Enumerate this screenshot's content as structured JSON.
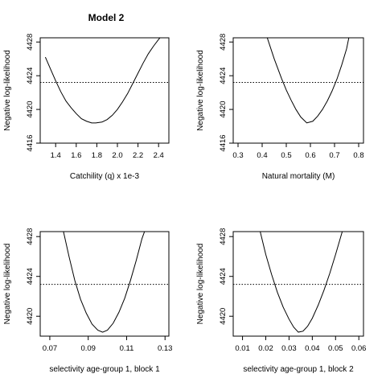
{
  "title": "Model 2",
  "chart_data": [
    {
      "type": "line",
      "xlabel": "Catchility (q) x 1e-3",
      "ylabel": "Negative log-likelihood",
      "xlim": [
        1.25,
        2.5
      ],
      "ylim": [
        4416,
        4428.5
      ],
      "xticks": [
        1.4,
        1.6,
        1.8,
        2.0,
        2.2,
        2.4
      ],
      "xtick_labels": [
        "1.4",
        "1.6",
        "1.8",
        "2.0",
        "2.2",
        "2.4"
      ],
      "yticks": [
        4416,
        4420,
        4424,
        4428
      ],
      "ytick_labels": [
        "4416",
        "4420",
        "4424",
        "4428"
      ],
      "minimum": {
        "x": 1.79,
        "y": 4418.4
      },
      "curve_x_start": 1.3,
      "reference_line": 4423.2,
      "series": [
        {
          "x": [
            1.3,
            1.35,
            1.4,
            1.45,
            1.5,
            1.55,
            1.6,
            1.65,
            1.7,
            1.75,
            1.79,
            1.85,
            1.9,
            1.95,
            2.0,
            2.05,
            2.1,
            2.15,
            2.2,
            2.25,
            2.3,
            2.35,
            2.4,
            2.42
          ],
          "y": [
            4426.2,
            4424.8,
            4423.4,
            4422.1,
            4421.0,
            4420.2,
            4419.5,
            4418.9,
            4418.6,
            4418.4,
            4418.4,
            4418.5,
            4418.8,
            4419.3,
            4420.0,
            4420.9,
            4421.9,
            4423.1,
            4424.3,
            4425.5,
            4426.6,
            4427.5,
            4428.3,
            4428.6
          ]
        }
      ]
    },
    {
      "type": "line",
      "xlabel": "Natural mortality (M)",
      "ylabel": "Negative log-likelihood",
      "xlim": [
        0.28,
        0.82
      ],
      "ylim": [
        4416,
        4428.5
      ],
      "xticks": [
        0.3,
        0.4,
        0.5,
        0.6,
        0.7,
        0.8
      ],
      "xtick_labels": [
        "0.3",
        "0.4",
        "0.5",
        "0.6",
        "0.7",
        "0.8"
      ],
      "yticks": [
        4416,
        4420,
        4424,
        4428
      ],
      "ytick_labels": [
        "4416",
        "4420",
        "4424",
        "4428"
      ],
      "minimum": {
        "x": 0.585,
        "y": 4418.4
      },
      "reference_line": 4423.2,
      "series": [
        {
          "x": [
            0.42,
            0.45,
            0.48,
            0.5,
            0.52,
            0.54,
            0.56,
            0.585,
            0.61,
            0.63,
            0.65,
            0.67,
            0.69,
            0.71,
            0.73,
            0.75,
            0.76
          ],
          "y": [
            4428.6,
            4426.0,
            4423.7,
            4422.3,
            4421.1,
            4420.0,
            4419.1,
            4418.4,
            4418.6,
            4419.2,
            4420.0,
            4421.0,
            4422.2,
            4423.6,
            4425.3,
            4427.2,
            4428.6
          ]
        }
      ]
    },
    {
      "type": "line",
      "xlabel": "selectivity age-group 1, block 1",
      "ylabel": "Negative log-likelihood",
      "xlim": [
        0.065,
        0.132
      ],
      "ylim": [
        4418.0,
        4428.5
      ],
      "xticks": [
        0.07,
        0.09,
        0.11,
        0.13
      ],
      "xtick_labels": [
        "0.07",
        "0.09",
        "0.11",
        "0.13"
      ],
      "yticks": [
        4420,
        4424,
        4428
      ],
      "ytick_labels": [
        "4420",
        "4424",
        "4428"
      ],
      "minimum": {
        "x": 0.0975,
        "y": 4418.4
      },
      "reference_line": 4423.2,
      "series": [
        {
          "x": [
            0.077,
            0.08,
            0.083,
            0.086,
            0.089,
            0.092,
            0.095,
            0.0975,
            0.1,
            0.103,
            0.106,
            0.109,
            0.112,
            0.115,
            0.118,
            0.1195
          ],
          "y": [
            4428.6,
            4426.0,
            4423.6,
            4421.7,
            4420.3,
            4419.2,
            4418.6,
            4418.4,
            4418.6,
            4419.3,
            4420.4,
            4421.8,
            4423.6,
            4425.6,
            4427.8,
            4428.6
          ]
        }
      ]
    },
    {
      "type": "line",
      "xlabel": "selectivity age-group 1, block 2",
      "ylabel": "Negative log-likelihood",
      "xlim": [
        0.006,
        0.062
      ],
      "ylim": [
        4418.0,
        4428.5
      ],
      "xticks": [
        0.01,
        0.02,
        0.03,
        0.04,
        0.05,
        0.06
      ],
      "xtick_labels": [
        "0.01",
        "0.02",
        "0.03",
        "0.04",
        "0.05",
        "0.06"
      ],
      "yticks": [
        4420,
        4424,
        4428
      ],
      "ytick_labels": [
        "4420",
        "4424",
        "4428"
      ],
      "minimum": {
        "x": 0.034,
        "y": 4418.4
      },
      "reference_line": 4423.2,
      "series": [
        {
          "x": [
            0.0175,
            0.02,
            0.0225,
            0.025,
            0.0275,
            0.03,
            0.032,
            0.034,
            0.036,
            0.038,
            0.04,
            0.0425,
            0.045,
            0.0475,
            0.05,
            0.052,
            0.053
          ],
          "y": [
            4428.6,
            4426.2,
            4424.2,
            4422.4,
            4420.9,
            4419.7,
            4418.9,
            4418.4,
            4418.5,
            4419.0,
            4419.8,
            4421.1,
            4422.6,
            4424.3,
            4426.2,
            4427.8,
            4428.6
          ]
        }
      ]
    }
  ]
}
